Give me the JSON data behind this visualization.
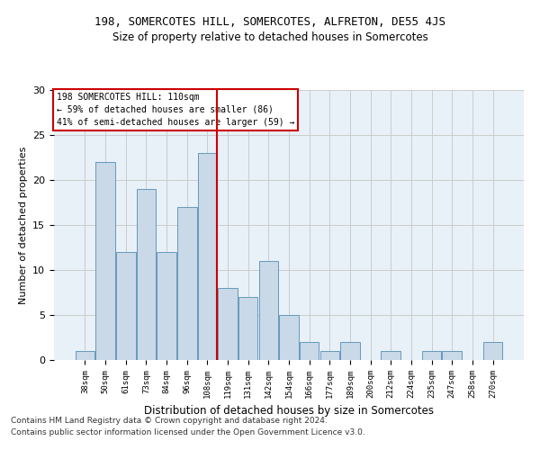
{
  "title1": "198, SOMERCOTES HILL, SOMERCOTES, ALFRETON, DE55 4JS",
  "title2": "Size of property relative to detached houses in Somercotes",
  "xlabel": "Distribution of detached houses by size in Somercotes",
  "ylabel": "Number of detached properties",
  "categories": [
    "38sqm",
    "50sqm",
    "61sqm",
    "73sqm",
    "84sqm",
    "96sqm",
    "108sqm",
    "119sqm",
    "131sqm",
    "142sqm",
    "154sqm",
    "166sqm",
    "177sqm",
    "189sqm",
    "200sqm",
    "212sqm",
    "224sqm",
    "235sqm",
    "247sqm",
    "258sqm",
    "270sqm"
  ],
  "values": [
    1,
    22,
    12,
    19,
    12,
    17,
    23,
    8,
    7,
    11,
    5,
    2,
    1,
    2,
    0,
    1,
    0,
    1,
    1,
    0,
    2
  ],
  "bar_color": "#c9d9e8",
  "bar_edge_color": "#6699bb",
  "vline_x_index": 6,
  "vline_color": "#cc0000",
  "annotation_lines": [
    "198 SOMERCOTES HILL: 110sqm",
    "← 59% of detached houses are smaller (86)",
    "41% of semi-detached houses are larger (59) →"
  ],
  "annotation_box_color": "#ffffff",
  "annotation_box_edge": "#cc0000",
  "ylim": [
    0,
    30
  ],
  "yticks": [
    0,
    5,
    10,
    15,
    20,
    25,
    30
  ],
  "grid_color": "#cccccc",
  "bg_color": "#e8f0f8",
  "footer1": "Contains HM Land Registry data © Crown copyright and database right 2024.",
  "footer2": "Contains public sector information licensed under the Open Government Licence v3.0."
}
